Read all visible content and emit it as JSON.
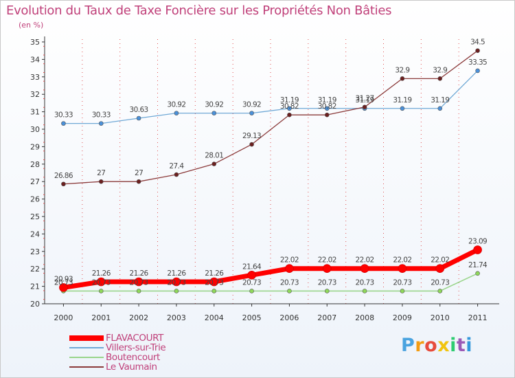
{
  "title": "Evolution du Taux de Taxe Foncière sur les Propriétés Non Bâties",
  "subtitle": "(en %)",
  "colors": {
    "background": "#ffffff",
    "title": "#c0407a",
    "grid": "#e05050"
  },
  "logo": {
    "text": "Proxiti",
    "letter_colors": [
      "#4aa3df",
      "#f39c12",
      "#e74c3c",
      "#f1c40f",
      "#2ecc71",
      "#9b59b6",
      "#3498db"
    ]
  },
  "chart_data": {
    "type": "line",
    "title": "Evolution du Taux de Taxe Foncière sur les Propriétés Non Bâties",
    "ylabel": "(en %)",
    "xlabel": "",
    "x": [
      "2000",
      "2001",
      "2002",
      "2003",
      "2004",
      "2005",
      "2006",
      "2007",
      "2008",
      "2009",
      "2010",
      "2011"
    ],
    "ylim": [
      20,
      35
    ],
    "yticks": [
      20,
      21,
      22,
      23,
      24,
      25,
      26,
      27,
      28,
      29,
      30,
      31,
      32,
      33,
      34,
      35
    ],
    "grid": "vertical-dashed",
    "legend_position": "bottom-left",
    "series": [
      {
        "name": "FLAVACOURT",
        "color": "#ff0000",
        "values": [
          20.93,
          21.26,
          21.26,
          21.26,
          21.26,
          21.64,
          22.02,
          22.02,
          22.02,
          22.02,
          22.02,
          23.09
        ],
        "labels": [
          "20.93",
          "21.26",
          "21.26",
          "21.26",
          "21.26",
          "21.64",
          "22.02",
          "22.02",
          "22.02",
          "22.02",
          "22.02",
          "23.09"
        ]
      },
      {
        "name": "Villers-sur-Trie",
        "color": "#6fa8d6",
        "values": [
          30.33,
          30.33,
          30.63,
          30.92,
          30.92,
          30.92,
          31.19,
          31.19,
          31.19,
          31.19,
          31.19,
          33.35
        ],
        "labels": [
          "30.33",
          "30.33",
          "30.63",
          "30.92",
          "30.92",
          "30.92",
          "31.19",
          "31.19",
          "31.19",
          "31.19",
          "31.19",
          "33.35"
        ]
      },
      {
        "name": "Boutencourt",
        "color": "#99d58a",
        "values": [
          20.73,
          20.73,
          20.73,
          20.73,
          20.73,
          20.73,
          20.73,
          20.73,
          20.73,
          20.73,
          20.73,
          21.74
        ],
        "labels": [
          "20.73",
          "20.73",
          "20.73",
          "20.73",
          "20.73",
          "20.73",
          "20.73",
          "20.73",
          "20.73",
          "20.73",
          "20.73",
          "21.74"
        ]
      },
      {
        "name": "Le Vaumain",
        "color": "#8b3a3a",
        "values": [
          26.86,
          27,
          27,
          27.4,
          28.01,
          29.13,
          30.82,
          30.82,
          31.27,
          32.9,
          32.9,
          34.5
        ],
        "labels": [
          "26.86",
          "27",
          "27",
          "27.4",
          "28.01",
          "29.13",
          "30.82",
          "30.82",
          "31.27",
          "32.9",
          "32.9",
          "34.5"
        ]
      }
    ]
  }
}
